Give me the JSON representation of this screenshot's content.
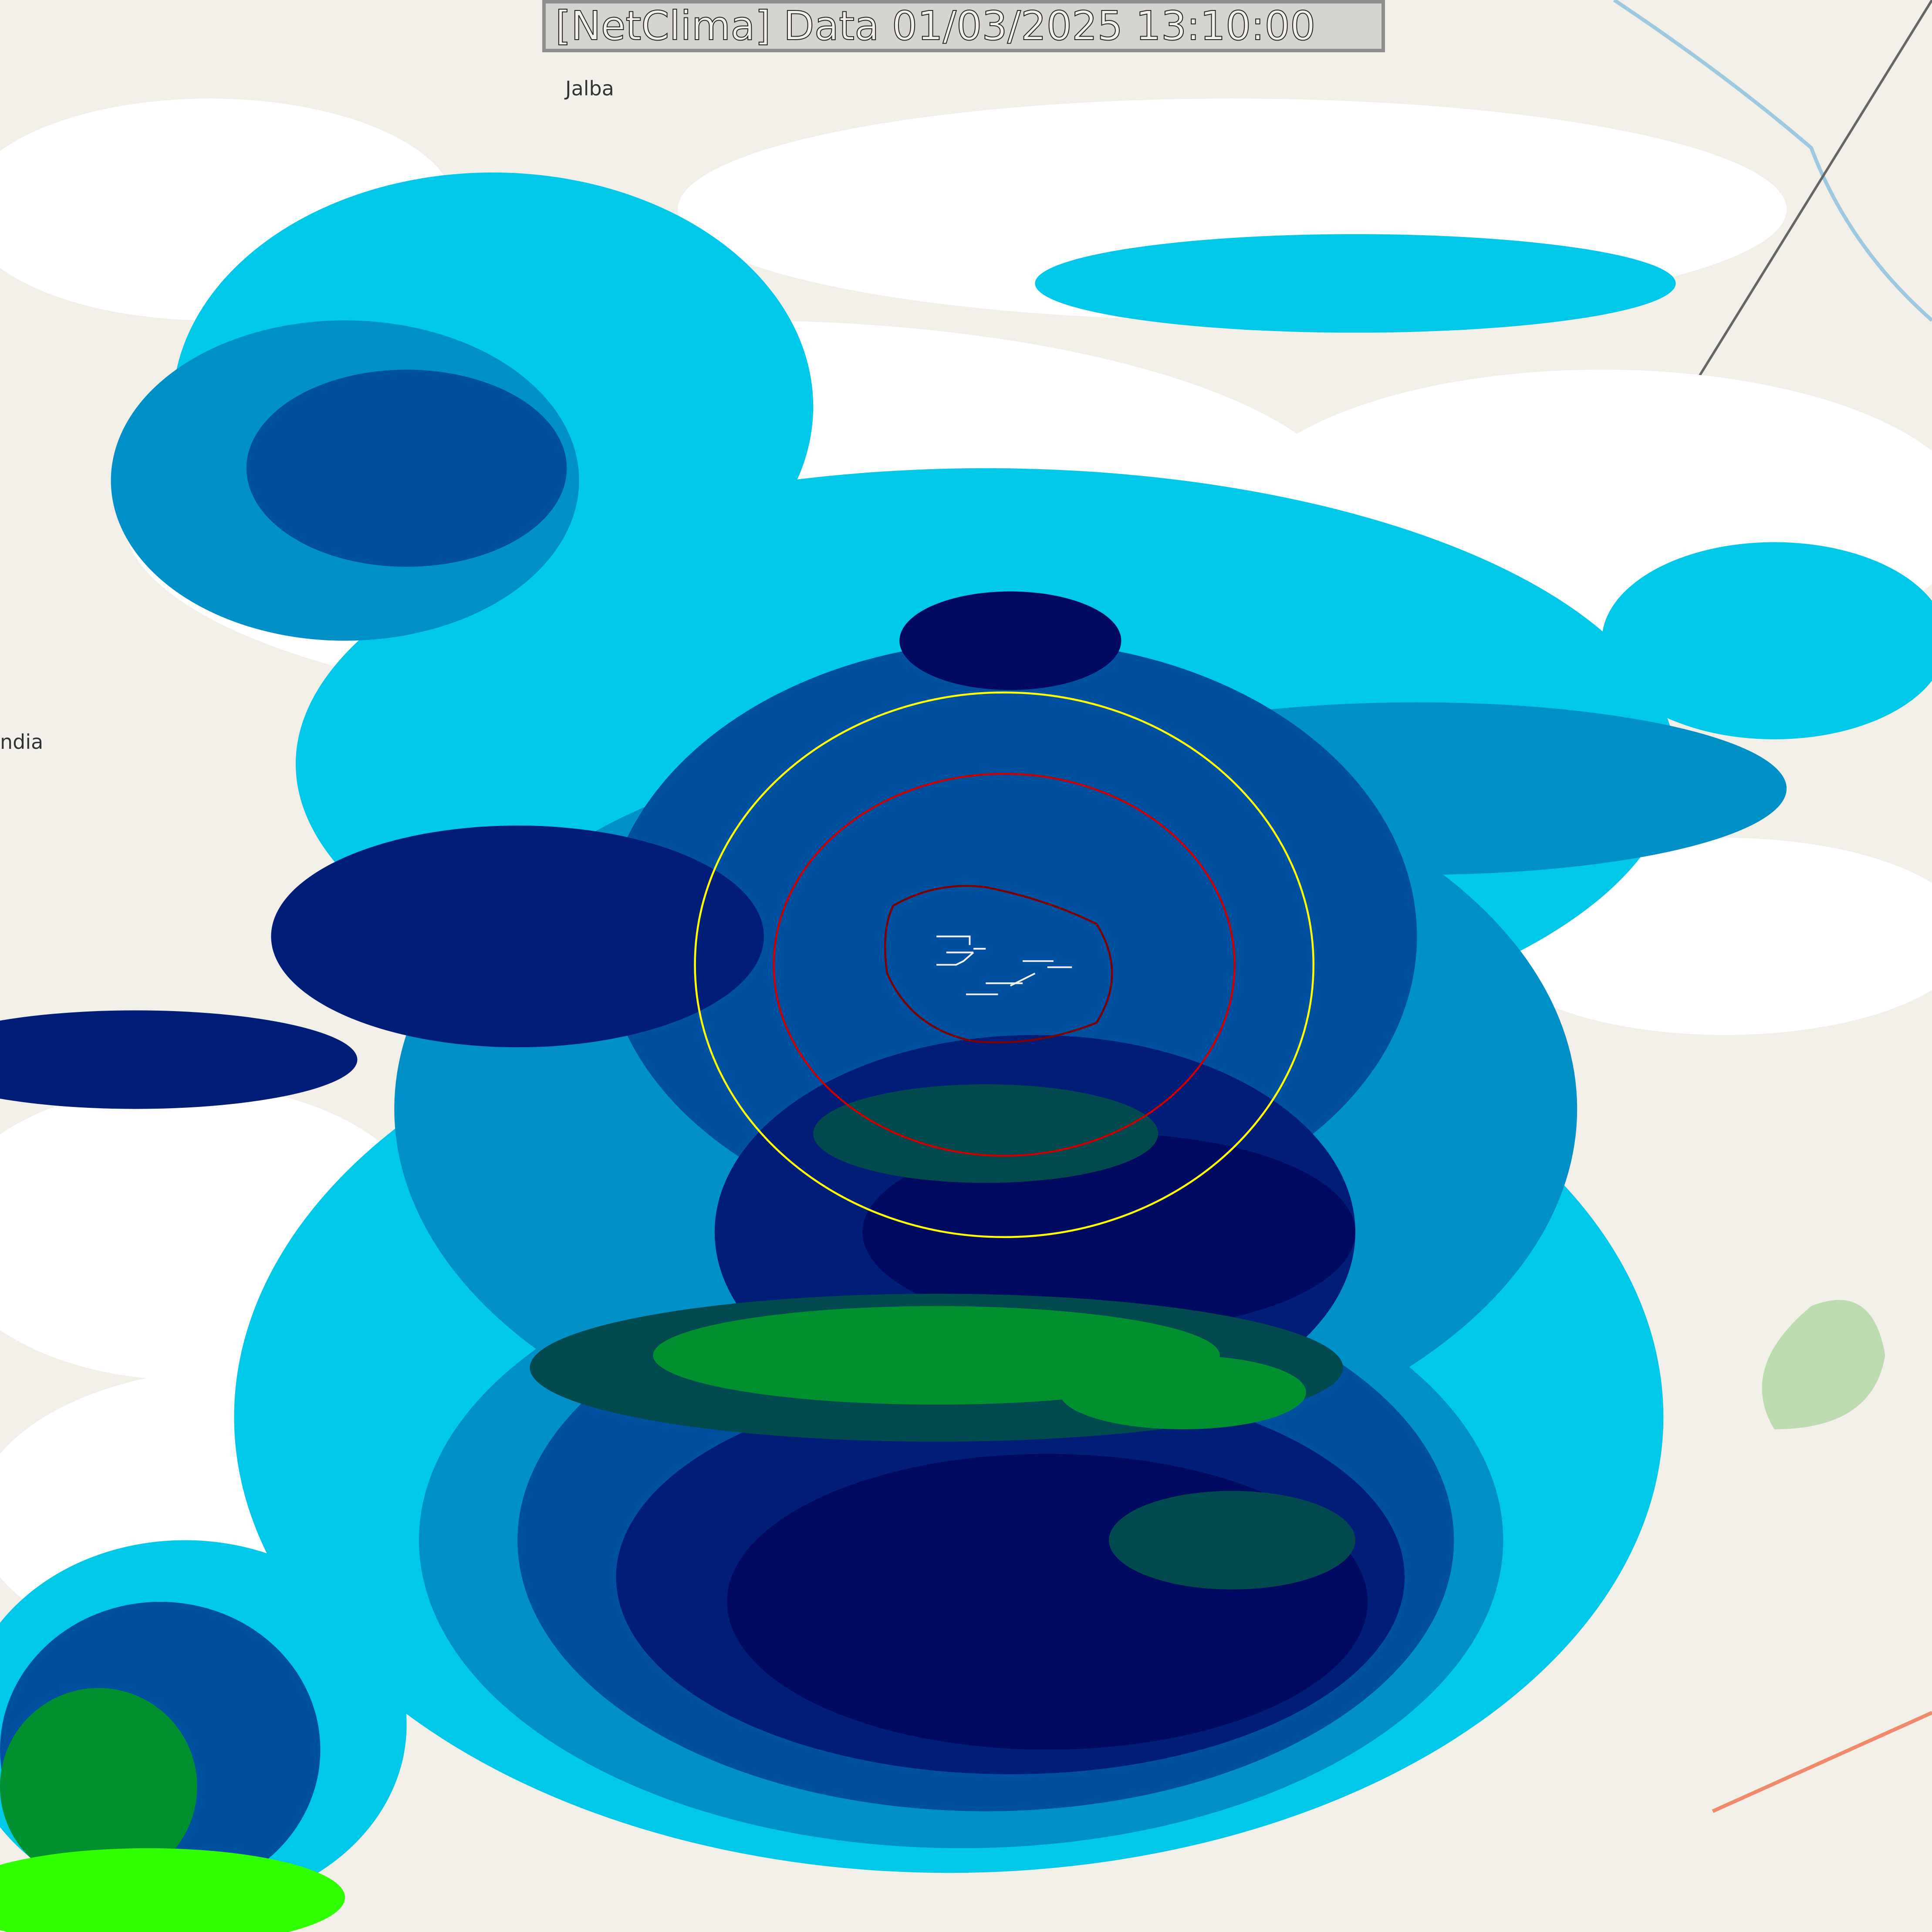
{
  "title": "[NetClima] Data 01/03/2025 13:10:00",
  "places": {
    "jalba": "Jalba",
    "india": "ndia"
  },
  "colors": {
    "land": "#f2efe9",
    "light": "#ffffff",
    "cyan": "#00ffff",
    "sky": "#00c8e8",
    "mid": "#0090c8",
    "blue": "#0050a0",
    "navy": "#001e78",
    "deep": "#000a60",
    "darkgreen": "#004a50",
    "green": "#009030",
    "lime": "#30ff00",
    "ring_outer": "#ffff00",
    "ring_mid": "#cc0000",
    "ring_inner": "#800000"
  }
}
